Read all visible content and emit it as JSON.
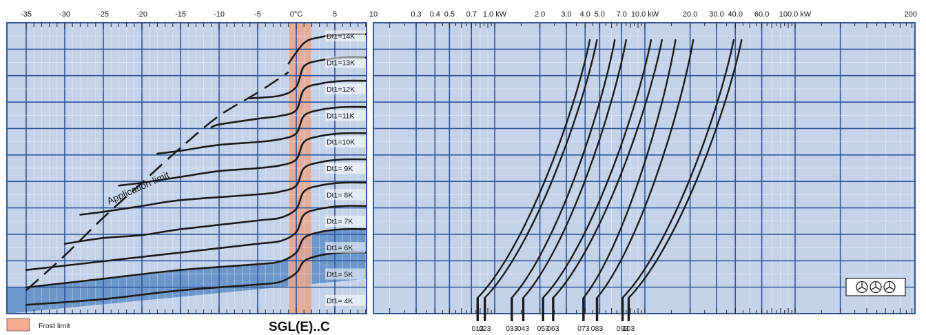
{
  "chart_data": [
    {
      "type": "line",
      "panel": "temperature",
      "title": "SGL(E)..C",
      "x_tick_labels": [
        "-35",
        "-30",
        "-25",
        "-20",
        "-15",
        "-10",
        "-5",
        "0°C",
        "5",
        "10"
      ],
      "xlim": [
        -35,
        10
      ],
      "frost_limit_range": [
        -1,
        2
      ],
      "frost_legend_label": "Frost limit",
      "application_limit_label": "Application limit",
      "application_limit": {
        "x": [
          -35,
          -30,
          -25,
          -20,
          -15,
          -10,
          -5,
          -1
        ],
        "y": [
          0.08,
          0.2,
          0.33,
          0.45,
          0.57,
          0.68,
          0.76,
          0.83
        ]
      },
      "series": [
        {
          "name": "Dt1= 4K",
          "x": [
            -35,
            -25,
            -15,
            -5,
            -2,
            0,
            1,
            3,
            6,
            10
          ],
          "y": [
            0.03,
            0.05,
            0.08,
            0.1,
            0.11,
            0.14,
            0.18,
            0.2,
            0.21,
            0.21
          ]
        },
        {
          "name": "Dt1= 5K",
          "x": [
            -35,
            -25,
            -15,
            -5,
            -2,
            0,
            1,
            3,
            6,
            10
          ],
          "y": [
            0.09,
            0.12,
            0.15,
            0.17,
            0.18,
            0.21,
            0.26,
            0.28,
            0.29,
            0.29
          ]
        },
        {
          "name": "Dt1= 6K",
          "x": [
            -35,
            -25,
            -15,
            -5,
            -2,
            0,
            1,
            3,
            6,
            10
          ],
          "y": [
            0.15,
            0.18,
            0.21,
            0.24,
            0.25,
            0.28,
            0.34,
            0.36,
            0.37,
            0.37
          ]
        },
        {
          "name": "Dt1= 7K",
          "x": [
            -30,
            -25,
            -20,
            -15,
            -5,
            -2,
            0,
            1,
            3,
            6,
            10
          ],
          "y": [
            0.24,
            0.26,
            0.27,
            0.29,
            0.32,
            0.33,
            0.36,
            0.42,
            0.44,
            0.45,
            0.45
          ]
        },
        {
          "name": "Dt1= 8K",
          "x": [
            -28,
            -25,
            -20,
            -15,
            -5,
            -2,
            0,
            1,
            3,
            6,
            10
          ],
          "y": [
            0.34,
            0.35,
            0.37,
            0.39,
            0.41,
            0.42,
            0.44,
            0.5,
            0.52,
            0.53,
            0.53
          ]
        },
        {
          "name": "Dt1= 9K",
          "x": [
            -23,
            -20,
            -15,
            -10,
            -5,
            -2,
            0,
            1,
            3,
            6,
            10
          ],
          "y": [
            0.44,
            0.45,
            0.47,
            0.49,
            0.5,
            0.51,
            0.53,
            0.59,
            0.61,
            0.62,
            0.62
          ]
        },
        {
          "name": "Dt1=10K",
          "x": [
            -18,
            -15,
            -10,
            -5,
            -2,
            0,
            1,
            3,
            6,
            10
          ],
          "y": [
            0.55,
            0.56,
            0.58,
            0.59,
            0.6,
            0.62,
            0.68,
            0.7,
            0.71,
            0.71
          ]
        },
        {
          "name": "Dt1=11K",
          "x": [
            -11,
            -10,
            -5,
            -2,
            0,
            1,
            3,
            6,
            10
          ],
          "y": [
            0.64,
            0.65,
            0.67,
            0.68,
            0.7,
            0.77,
            0.79,
            0.8,
            0.8
          ]
        },
        {
          "name": "Dt1=12K",
          "x": [
            -6,
            -2,
            0,
            1,
            3,
            6,
            10
          ],
          "y": [
            0.74,
            0.75,
            0.78,
            0.85,
            0.87,
            0.88,
            0.88
          ]
        },
        {
          "name": "Dt1=13K",
          "x": [
            -1,
            1,
            3,
            6,
            10
          ],
          "y": [
            0.86,
            0.93,
            0.95,
            0.96,
            0.96
          ]
        },
        {
          "name": "Dt1=14K",
          "x": [],
          "y": []
        }
      ]
    },
    {
      "type": "line",
      "panel": "capacity",
      "x_scale": "log",
      "xlim": [
        0.2,
        200
      ],
      "x_tick_labels": [
        {
          "value": 0.3,
          "label": "0.3"
        },
        {
          "value": 0.4,
          "label": "0.4"
        },
        {
          "value": 0.5,
          "label": "0.5"
        },
        {
          "value": 0.7,
          "label": "0.7"
        },
        {
          "value": 1.0,
          "label": "1.0 kW"
        },
        {
          "value": 2.0,
          "label": "2.0"
        },
        {
          "value": 3.0,
          "label": "3.0"
        },
        {
          "value": 4.0,
          "label": "4.0"
        },
        {
          "value": 5.0,
          "label": "5.0"
        },
        {
          "value": 7.0,
          "label": "7.0"
        },
        {
          "value": 10.0,
          "label": "10.0 kW"
        },
        {
          "value": 20.0,
          "label": "20.0"
        },
        {
          "value": 30.0,
          "label": "30.0"
        },
        {
          "value": 40.0,
          "label": "40.0"
        },
        {
          "value": 60.0,
          "label": "60.0"
        },
        {
          "value": 100.0,
          "label": "100.0 kW"
        },
        {
          "value": 200.0,
          "label": "200"
        }
      ],
      "series": [
        {
          "name": "013",
          "x_start": 0.77,
          "x_end": 4.3
        },
        {
          "name": "023",
          "x_start": 0.86,
          "x_end": 4.8
        },
        {
          "name": "033",
          "x_start": 1.3,
          "x_end": 6.3
        },
        {
          "name": "043",
          "x_start": 1.55,
          "x_end": 7.5
        },
        {
          "name": "053",
          "x_start": 2.1,
          "x_end": 11.0
        },
        {
          "name": "063",
          "x_start": 2.45,
          "x_end": 13.0
        },
        {
          "name": "073",
          "x_start": 3.9,
          "x_end": 16.0
        },
        {
          "name": "083",
          "x_start": 4.8,
          "x_end": 21.0
        },
        {
          "name": "093",
          "x_start": 7.1,
          "x_end": 39.0
        },
        {
          "name": "103",
          "x_start": 7.8,
          "x_end": 44.0
        }
      ],
      "fan_icon": "three-fans-icon"
    }
  ],
  "colors": {
    "panel_background": "#c5d3ea",
    "grid_major": "#2f5597",
    "grid_minor": "#ffffff",
    "frost_band": "#e8a58f",
    "shaded_region": "#5d8cc6",
    "curve": "#1b1b1b"
  }
}
